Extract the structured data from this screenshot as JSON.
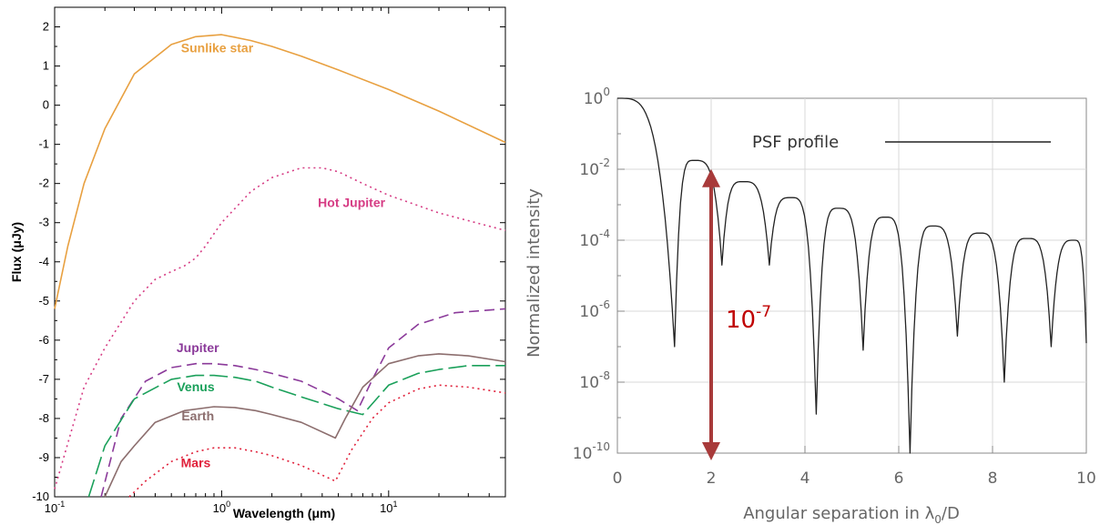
{
  "chart_data": [
    {
      "type": "line",
      "title": "",
      "xlabel": "Wavelength (μm)",
      "ylabel": "Flux (μJy)",
      "xscale": "log",
      "xlim": [
        0.1,
        50
      ],
      "ylim": [
        -10,
        2.5
      ],
      "grid": false,
      "x_ticks": [
        {
          "value": 0.1,
          "base": "10",
          "exp": "-1"
        },
        {
          "value": 1,
          "base": "10",
          "exp": "0"
        },
        {
          "value": 10,
          "base": "10",
          "exp": "1"
        }
      ],
      "y_ticks": [
        2,
        1,
        0,
        -1,
        -2,
        -3,
        -4,
        -5,
        -6,
        -7,
        -8,
        -9,
        -10
      ],
      "series": [
        {
          "name": "Sunlike star",
          "color": "#e8a040",
          "style": "solid",
          "x": [
            0.1,
            0.12,
            0.15,
            0.2,
            0.3,
            0.5,
            0.7,
            1.0,
            1.5,
            2,
            3,
            5,
            10,
            20,
            50
          ],
          "y": [
            -5.2,
            -3.6,
            -2.0,
            -0.6,
            0.8,
            1.55,
            1.75,
            1.8,
            1.65,
            1.5,
            1.25,
            0.9,
            0.4,
            -0.15,
            -0.95
          ]
        },
        {
          "name": "Hot Jupiter",
          "color": "#d63c84",
          "style": "dotted",
          "x": [
            0.1,
            0.15,
            0.2,
            0.3,
            0.4,
            0.5,
            0.6,
            0.7,
            0.8,
            1.0,
            1.5,
            2,
            3,
            4,
            5,
            7,
            10,
            20,
            50
          ],
          "y": [
            -9.8,
            -7.2,
            -6.2,
            -5.0,
            -4.45,
            -4.25,
            -4.1,
            -3.9,
            -3.6,
            -3.0,
            -2.2,
            -1.85,
            -1.6,
            -1.6,
            -1.7,
            -2.0,
            -2.3,
            -2.75,
            -3.2
          ]
        },
        {
          "name": "Jupiter",
          "color": "#8b3a9a",
          "style": "dashed",
          "x": [
            0.19,
            0.25,
            0.35,
            0.5,
            0.7,
            0.9,
            1.2,
            1.6,
            2.0,
            3,
            5,
            6.5,
            8,
            10,
            15,
            25,
            50
          ],
          "y": [
            -10,
            -8.0,
            -7.05,
            -6.7,
            -6.6,
            -6.6,
            -6.65,
            -6.75,
            -6.85,
            -7.05,
            -7.5,
            -7.8,
            -7.0,
            -6.2,
            -5.6,
            -5.3,
            -5.2
          ]
        },
        {
          "name": "Venus",
          "color": "#1aa05a",
          "style": "longdash",
          "x": [
            0.16,
            0.2,
            0.3,
            0.5,
            0.7,
            0.9,
            1.2,
            1.6,
            2,
            3,
            5,
            7,
            10,
            15,
            20,
            30,
            50
          ],
          "y": [
            -10,
            -8.7,
            -7.5,
            -7.0,
            -6.9,
            -6.9,
            -6.95,
            -7.05,
            -7.2,
            -7.45,
            -7.75,
            -7.9,
            -7.15,
            -6.85,
            -6.75,
            -6.65,
            -6.65
          ]
        },
        {
          "name": "Earth",
          "color": "#8c6e6e",
          "style": "solid",
          "x": [
            0.2,
            0.25,
            0.3,
            0.4,
            0.6,
            0.9,
            1.2,
            1.6,
            2,
            3,
            4.8,
            5.5,
            7,
            10,
            15,
            20,
            30,
            50
          ],
          "y": [
            -10,
            -9.1,
            -8.7,
            -8.1,
            -7.8,
            -7.7,
            -7.72,
            -7.8,
            -7.9,
            -8.1,
            -8.5,
            -8.0,
            -7.2,
            -6.6,
            -6.4,
            -6.35,
            -6.4,
            -6.55
          ]
        },
        {
          "name": "Mars",
          "color": "#e0203a",
          "style": "dotted",
          "x": [
            0.28,
            0.35,
            0.5,
            0.7,
            0.9,
            1.2,
            1.6,
            2,
            3,
            4.8,
            6,
            8,
            10,
            15,
            20,
            30,
            50
          ],
          "y": [
            -10,
            -9.6,
            -9.1,
            -8.85,
            -8.75,
            -8.75,
            -8.85,
            -8.95,
            -9.2,
            -9.6,
            -8.8,
            -8.0,
            -7.6,
            -7.25,
            -7.15,
            -7.2,
            -7.35
          ]
        }
      ]
    },
    {
      "type": "line",
      "title": "",
      "xlabel": "Angular separation in λ₀/D",
      "ylabel": "Normalized intensity",
      "yscale": "log",
      "xlim": [
        0,
        10
      ],
      "ylim": [
        1e-10,
        1
      ],
      "grid": true,
      "x_ticks": [
        "0",
        "2",
        "4",
        "6",
        "8",
        "10"
      ],
      "y_ticks": [
        {
          "value": 0,
          "base": "10",
          "exp": "0"
        },
        {
          "value": -2,
          "base": "10",
          "exp": "-2"
        },
        {
          "value": -4,
          "base": "10",
          "exp": "-4"
        },
        {
          "value": -6,
          "base": "10",
          "exp": "-6"
        },
        {
          "value": -8,
          "base": "10",
          "exp": "-8"
        },
        {
          "value": -10,
          "base": "10",
          "exp": "-10"
        }
      ],
      "legend": {
        "label": "PSF profile",
        "placement": "top-right"
      },
      "series": [
        {
          "name": "PSF profile",
          "color": "#222222",
          "peak_x": [
            0,
            1.63,
            2.68,
            3.7,
            4.71,
            5.72,
            6.73,
            7.73,
            8.74,
            9.74
          ],
          "peak_log10_y": [
            0,
            -1.75,
            -2.35,
            -2.8,
            -3.1,
            -3.35,
            -3.6,
            -3.8,
            -3.95,
            -4.0
          ],
          "null_x": [
            1.22,
            2.23,
            3.24,
            4.24,
            5.24,
            6.24,
            7.25,
            8.25,
            9.25,
            10.0
          ],
          "null_log10_y": [
            -7.0,
            -4.7,
            -4.7,
            -8.9,
            -7.1,
            -10.0,
            -6.7,
            -8.0,
            -7.0,
            -6.9
          ]
        }
      ],
      "annotation": {
        "base": "10",
        "exp": "-7",
        "color": "#a83a3a",
        "x": 2.0,
        "y_log_from": -2.25,
        "y_log_to": -10
      }
    }
  ]
}
